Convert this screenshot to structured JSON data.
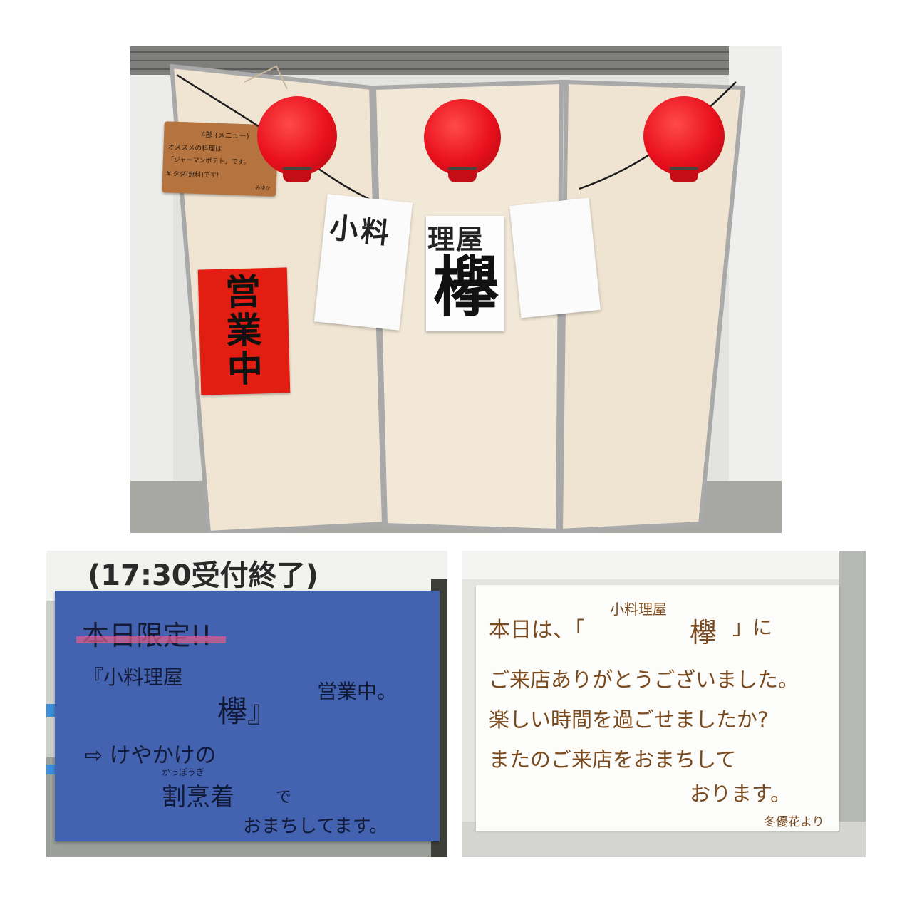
{
  "top_photo": {
    "wood_sign": {
      "line1": "4部 (メニュー)",
      "line2": "オススメの料理は",
      "line3": "「ジャーマンポテト」です。",
      "line4": "¥ タダ(無料)です!",
      "signature": "みゆか"
    },
    "red_sign_text": [
      "営",
      "業",
      "中"
    ],
    "banner_left": "小料",
    "banner_mid_top": "理屋",
    "banner_mid_big": "欅"
  },
  "left_photo": {
    "top_label": "(17:30受付終了)",
    "line1": "本日限定!!",
    "line2": "『小料理屋",
    "line3": "欅』",
    "line3b": "営業中。",
    "line4": "⇨ けやかけの",
    "line5_ruby": "かっぽうぎ",
    "line5": "割烹着",
    "line5b": "で",
    "line6": "おまちしてます。"
  },
  "right_photo": {
    "line1a": "本日は、「",
    "line1b": "小料理屋",
    "line1c": "欅",
    "line1d": "」に",
    "line2": "ご来店ありがとうございました。",
    "line3": "楽しい時間を過ごせましたか?",
    "line4": "またのご来店をおまちして",
    "line5": "おります。",
    "signature": "冬優花より"
  },
  "colors": {
    "lantern_red": "#e8101c",
    "panel_cream": "#f1e7d6",
    "sign_red": "#e21e12",
    "blue_paper": "#4363b0",
    "ink_brown": "#7a4a1e"
  }
}
